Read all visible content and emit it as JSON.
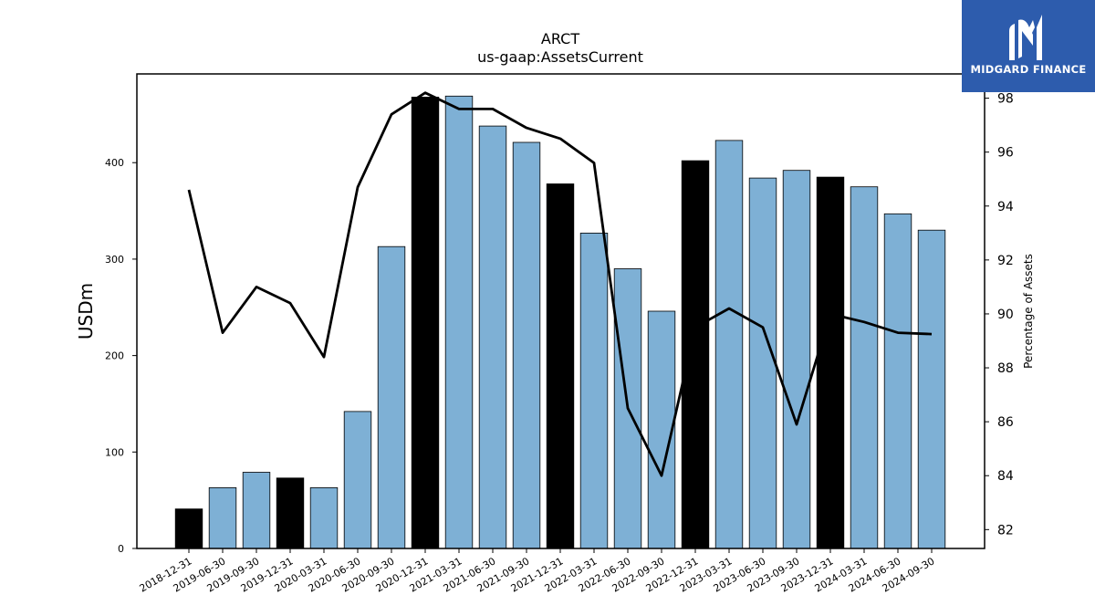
{
  "chart_data": {
    "type": "bar",
    "title": "ARCT",
    "subtitle": "us-gaap:AssetsCurrent",
    "ylabel": "USDm",
    "y2label": "Percentage of Assets",
    "ylim": [
      0,
      492
    ],
    "y2lim": [
      81.3,
      98.9
    ],
    "yticks": [
      0,
      100,
      200,
      300,
      400
    ],
    "y2ticks": [
      82,
      84,
      86,
      88,
      90,
      92,
      94,
      96,
      98
    ],
    "categories": [
      "2018-12-31",
      "2019-06-30",
      "2019-09-30",
      "2019-12-31",
      "2020-03-31",
      "2020-06-30",
      "2020-09-30",
      "2020-12-31",
      "2021-03-31",
      "2021-06-30",
      "2021-09-30",
      "2021-12-31",
      "2022-03-31",
      "2022-06-30",
      "2022-09-30",
      "2022-12-31",
      "2023-03-31",
      "2023-06-30",
      "2023-09-30",
      "2023-12-31",
      "2024-03-31",
      "2024-06-30",
      "2024-09-30"
    ],
    "series": [
      {
        "type": "bar",
        "values": [
          41,
          63,
          79,
          73,
          63,
          142,
          313,
          468,
          469,
          438,
          421,
          378,
          327,
          290,
          246,
          402,
          423,
          384,
          392,
          385,
          375,
          347,
          330
        ],
        "year_end": [
          true,
          false,
          false,
          true,
          false,
          false,
          false,
          true,
          false,
          false,
          false,
          true,
          false,
          false,
          false,
          true,
          false,
          false,
          false,
          true,
          false,
          false,
          false
        ]
      },
      {
        "type": "line",
        "axis": "right",
        "values": [
          94.6,
          89.3,
          91.0,
          90.4,
          88.4,
          94.7,
          97.4,
          98.2,
          97.6,
          97.6,
          96.9,
          96.5,
          95.6,
          86.5,
          84.0,
          89.5,
          90.2,
          89.5,
          85.9,
          90.0,
          89.7,
          89.3,
          89.25
        ]
      }
    ],
    "colors": {
      "bar": "#7eb0d5",
      "bar_year_end": "#000000",
      "line": "#000000"
    },
    "grid": false
  },
  "logo": {
    "text": "MIDGARD FINANCE",
    "background": "#2d5cad"
  }
}
